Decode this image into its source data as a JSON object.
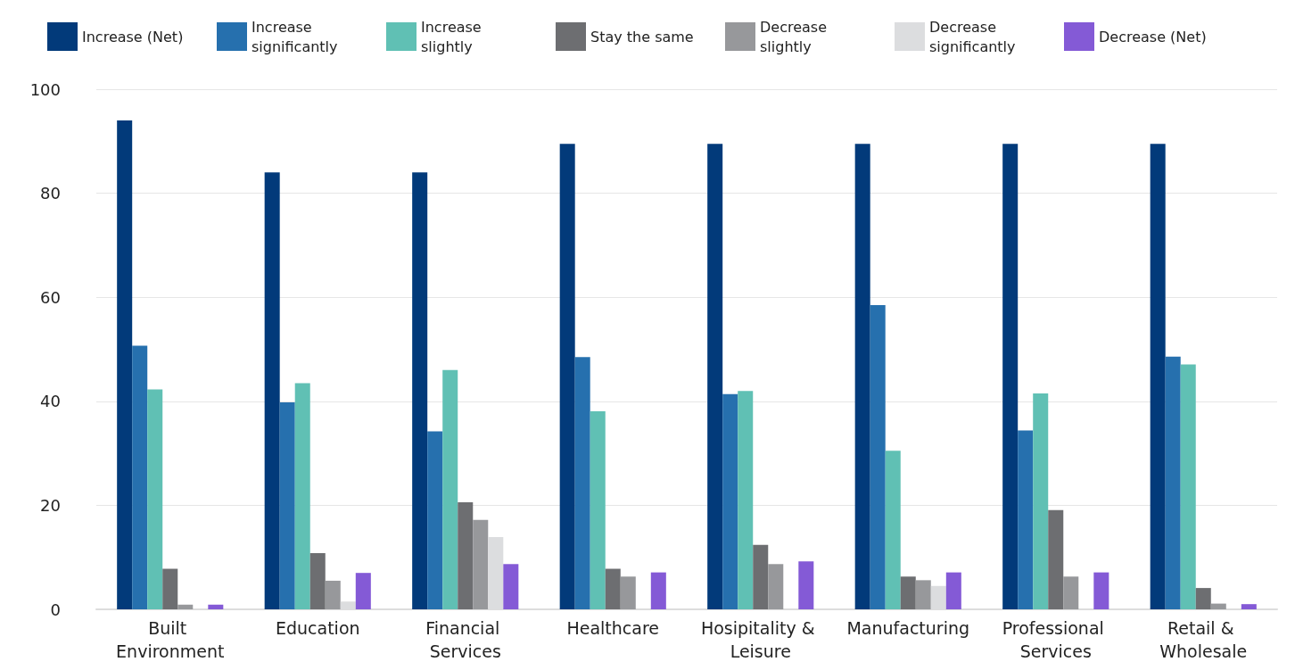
{
  "chart_data": {
    "type": "bar",
    "categories": [
      "Built Environment",
      "Education",
      "Financial Services",
      "Healthcare",
      "Hosipitality & Leisure",
      "Manufacturing",
      "Professional Services",
      "Retail & Wholesale"
    ],
    "series": [
      {
        "name": "Increase (Net)",
        "color": "#023a7a",
        "values": [
          94,
          84,
          84,
          89.5,
          89.5,
          89.5,
          89.5,
          89.5
        ]
      },
      {
        "name": "Increase significantly",
        "color": "#2670ae",
        "values": [
          50.7,
          39.8,
          34.2,
          48.5,
          41.4,
          58.5,
          34.4,
          48.6
        ]
      },
      {
        "name": "Increase slightly",
        "color": "#60c0b4",
        "values": [
          42.3,
          43.5,
          46,
          38.1,
          42,
          30.5,
          41.5,
          47.1
        ]
      },
      {
        "name": "Stay the same",
        "color": "#6d6e71",
        "values": [
          7.8,
          10.8,
          20.6,
          7.8,
          12.4,
          6.3,
          19.1,
          4.1
        ]
      },
      {
        "name": "Decrease slightly",
        "color": "#97989b",
        "values": [
          0.9,
          5.5,
          17.2,
          6.3,
          8.7,
          5.6,
          6.3,
          1.1
        ]
      },
      {
        "name": "Decrease significantly",
        "color": "#dcdddf",
        "values": [
          0,
          1.5,
          13.9,
          0,
          0,
          4.5,
          0,
          0
        ]
      },
      {
        "name": "Decrease (Net)",
        "color": "#845ad6",
        "values": [
          0.9,
          7,
          8.7,
          7.1,
          9.2,
          7.1,
          7.1,
          1
        ]
      }
    ],
    "ylim": [
      0,
      100
    ],
    "yticks": [
      0,
      20,
      40,
      60,
      80,
      100
    ],
    "grid": "y",
    "legend": "top"
  }
}
